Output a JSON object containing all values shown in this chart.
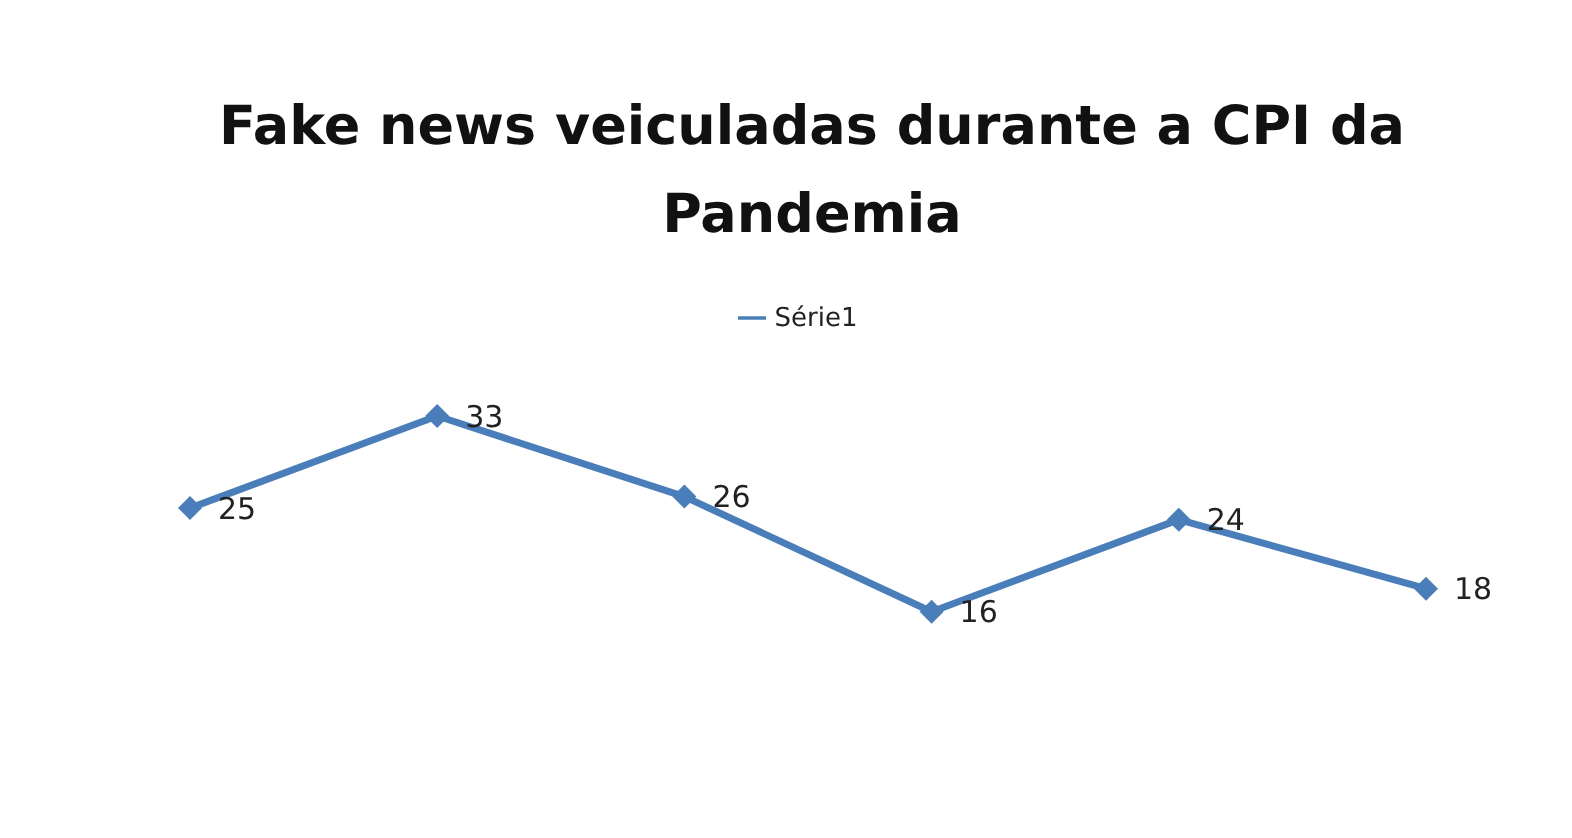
{
  "chart_data": {
    "type": "line",
    "title": "Fake news veiculadas durante a CPI da Pandemia",
    "categories": [
      null,
      null,
      null,
      null,
      null,
      null
    ],
    "series": [
      {
        "name": "Série1",
        "color": "#4a7ebb",
        "values": [
          25,
          33,
          26,
          16,
          24,
          18
        ]
      }
    ],
    "marker": "diamond",
    "data_labels": true,
    "legend": "top",
    "grid": false,
    "tick_labels": false
  }
}
